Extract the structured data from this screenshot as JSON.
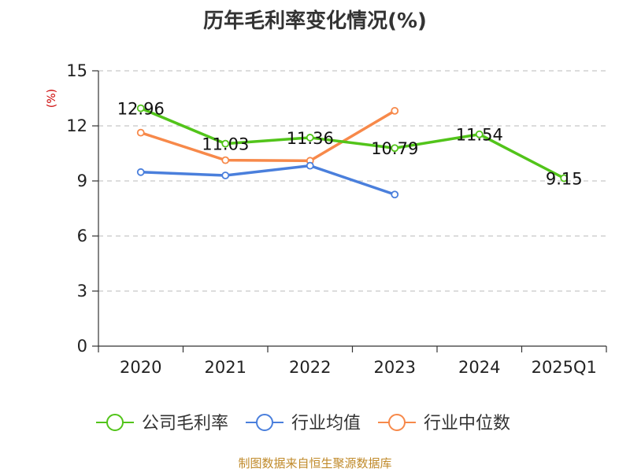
{
  "chart_data": {
    "type": "line",
    "title": "历年毛利率变化情况(%)",
    "ylabel": "(%)",
    "xlabel": "",
    "categories": [
      "2020",
      "2021",
      "2022",
      "2023",
      "2024",
      "2025Q1"
    ],
    "ylim": [
      0,
      15
    ],
    "yticks": [
      0,
      3,
      6,
      9,
      12,
      15
    ],
    "grid": true,
    "legend_position": "bottom",
    "series": [
      {
        "name": "公司毛利率",
        "color": "#52c41a",
        "values": [
          12.96,
          11.03,
          11.36,
          10.79,
          11.54,
          9.15
        ],
        "show_labels": true
      },
      {
        "name": "行业均值",
        "color": "#4a7fdc",
        "values": [
          9.48,
          9.3,
          9.83,
          8.26,
          null,
          null
        ],
        "show_labels": false
      },
      {
        "name": "行业中位数",
        "color": "#f7894a",
        "values": [
          11.63,
          10.13,
          10.1,
          12.82,
          null,
          null
        ],
        "show_labels": false
      }
    ]
  },
  "source": "制图数据来自恒生聚源数据库"
}
